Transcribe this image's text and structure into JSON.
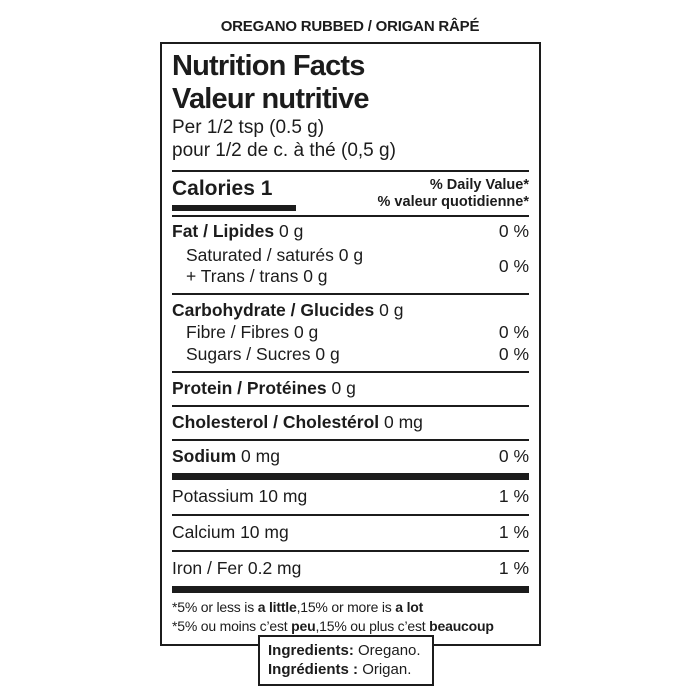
{
  "colors": {
    "text": "#1c1c1c",
    "background": "#ffffff"
  },
  "product": {
    "title": "OREGANO RUBBED / ORIGAN RÂPÉ"
  },
  "label": {
    "title_en": "Nutrition Facts",
    "title_fr": "Valeur nutritive",
    "serving_en": "Per 1/2 tsp (0.5 g)",
    "serving_fr": "pour 1/2 de c. à thé (0,5 g)",
    "calories": {
      "label": "Calories",
      "value": "1"
    },
    "dv_header_en": "% Daily Value*",
    "dv_header_fr": "% valeur quotidienne*",
    "rows": {
      "fat": {
        "bold": "Fat / Lipides",
        "rest": "0 g",
        "pct": "0 %"
      },
      "saturated_trans": {
        "line1": "Saturated / saturés 0 g",
        "line2": "+ Trans / trans 0 g",
        "pct": "0 %"
      },
      "carbohydrate": {
        "bold": "Carbohydrate / Glucides",
        "rest": "0 g"
      },
      "fibre": {
        "text": "Fibre / Fibres 0 g",
        "pct": "0 %"
      },
      "sugars": {
        "text": "Sugars / Sucres 0 g",
        "pct": "0 %"
      },
      "protein": {
        "bold": "Protein / Protéines",
        "rest": "0 g"
      },
      "cholesterol": {
        "bold": "Cholesterol / Cholestérol",
        "rest": "0 mg"
      },
      "sodium": {
        "bold": "Sodium",
        "rest": "0 mg",
        "pct": "0 %"
      },
      "potassium": {
        "text": "Potassium 10 mg",
        "pct": "1 %"
      },
      "calcium": {
        "text": "Calcium 10 mg",
        "pct": "1 %"
      },
      "iron": {
        "text": "Iron / Fer 0.2 mg",
        "pct": "1 %"
      }
    },
    "footnote_en": {
      "pre": "*5% or less is ",
      "bold1": "a little",
      "mid": ",15% or more is ",
      "bold2": "a lot"
    },
    "footnote_fr": {
      "pre": "*5% ou moins c’est ",
      "bold1": "peu",
      "mid": ",15% ou plus c’est ",
      "bold2": "beaucoup"
    }
  },
  "ingredients": {
    "label_en": "Ingredients:",
    "value_en": "Oregano.",
    "label_fr": "Ingrédients :",
    "value_fr": "Origan."
  }
}
